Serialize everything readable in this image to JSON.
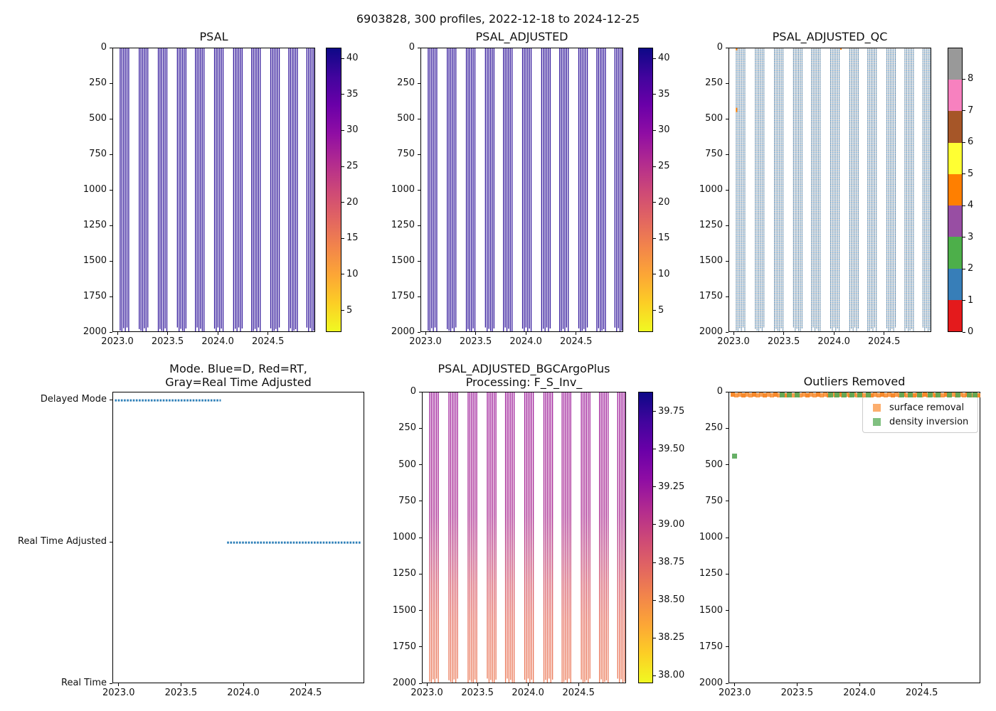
{
  "figure": {
    "title": "6903828, 300 profiles, 2022-12-18 to 2024-12-25",
    "background": "#ffffff"
  },
  "shared_axes": {
    "x": {
      "lim": [
        2022.95,
        2024.97
      ],
      "tick_values": [
        2023.0,
        2023.5,
        2024.0,
        2024.5
      ],
      "tick_labels": [
        "2023.0",
        "2023.5",
        "2024.0",
        "2024.5"
      ]
    },
    "depth": {
      "lim": [
        0,
        2000
      ],
      "tick_values": [
        0,
        250,
        500,
        750,
        1000,
        1250,
        1500,
        1750,
        2000
      ],
      "tick_labels": [
        "0",
        "250",
        "500",
        "750",
        "1000",
        "1250",
        "1500",
        "1750",
        "2000"
      ]
    },
    "profile_clusters": {
      "centers": [
        2023.07,
        2023.26,
        2023.45,
        2023.64,
        2023.82,
        2024.01,
        2024.2,
        2024.38,
        2024.57,
        2024.75,
        2024.93
      ],
      "lines_per_cluster": 6,
      "line_pitch_years": 0.017,
      "line_top_depth": 0,
      "line_bottom_depth_base": 1985,
      "line_bottom_depth_jitter": 22
    }
  },
  "chart_data": [
    {
      "id": "psal",
      "type": "profile-lines",
      "title": "PSAL",
      "line_color": "#32179b",
      "line_width": 1.3,
      "colorbar": {
        "cmap": "plasma_r",
        "colors_top_to_bottom": [
          "#0d0887",
          "#41049d",
          "#6a00a8",
          "#8f0da4",
          "#b12a90",
          "#cc4778",
          "#e16462",
          "#f2844b",
          "#fca636",
          "#fcce25",
          "#f0f921"
        ],
        "vmin": 2.0,
        "vmax": 41.5,
        "tick_values": [
          5,
          10,
          15,
          20,
          25,
          30,
          35,
          40
        ],
        "tick_labels": [
          "5",
          "10",
          "15",
          "20",
          "25",
          "30",
          "35",
          "40"
        ]
      }
    },
    {
      "id": "psal_adjusted",
      "type": "profile-lines",
      "title": "PSAL_ADJUSTED",
      "line_color": "#32179b",
      "line_width": 1.3,
      "colorbar": {
        "cmap": "plasma_r",
        "colors_top_to_bottom": [
          "#0d0887",
          "#41049d",
          "#6a00a8",
          "#8f0da4",
          "#b12a90",
          "#cc4778",
          "#e16462",
          "#f2844b",
          "#fca636",
          "#fcce25",
          "#f0f921"
        ],
        "vmin": 2.0,
        "vmax": 41.5,
        "tick_values": [
          5,
          10,
          15,
          20,
          25,
          30,
          35,
          40
        ],
        "tick_labels": [
          "5",
          "10",
          "15",
          "20",
          "25",
          "30",
          "35",
          "40"
        ]
      }
    },
    {
      "id": "psal_adjusted_qc",
      "type": "profile-lines-dashed",
      "title": "PSAL_ADJUSTED_QC",
      "line_dash_colors": [
        "#4d8cc0",
        "#9f9f9f"
      ],
      "line_width": 1.1,
      "orange_color": "#ff7f00",
      "orange_marks": [
        {
          "x": 2023.03,
          "depth_start": 418,
          "depth_end": 448
        },
        {
          "x": 2023.03,
          "depth_start": 0,
          "depth_end": 14
        },
        {
          "x": 2024.07,
          "depth_start": 0,
          "depth_end": 10
        }
      ],
      "colorbar": {
        "cmap": "Set1",
        "colors_low_to_high": [
          "#e41a1c",
          "#377eb8",
          "#4daf4a",
          "#984ea3",
          "#ff7f00",
          "#ffff33",
          "#a65628",
          "#f781bf",
          "#999999"
        ],
        "vmin": 0,
        "vmax": 9,
        "tick_values": [
          0,
          1,
          2,
          3,
          4,
          5,
          6,
          7,
          8
        ],
        "tick_labels": [
          "0",
          "1",
          "2",
          "3",
          "4",
          "5",
          "6",
          "7",
          "8"
        ]
      }
    },
    {
      "id": "mode",
      "type": "category-timeline",
      "title": "Mode. Blue=D, Red=RT,\nGray=Real Time Adjusted",
      "categories": [
        "Delayed Mode",
        "Real Time Adjusted",
        "Real Time"
      ],
      "segments": [
        {
          "category": "Delayed Mode",
          "x_start": 2022.97,
          "x_end": 2023.82
        },
        {
          "category": "Real Time Adjusted",
          "x_start": 2023.87,
          "x_end": 2024.94
        }
      ],
      "line_color": "#2d7fb8"
    },
    {
      "id": "bgc",
      "type": "profile-lines-gradient",
      "title": "PSAL_ADJUSTED_BGCArgoPlus\nProcessing: F_S_Inv_",
      "line_width": 1.3,
      "line_gradient": [
        {
          "depth_frac": 0.0,
          "color": "#9e1f9c"
        },
        {
          "depth_frac": 0.42,
          "color": "#a8258f"
        },
        {
          "depth_frac": 0.55,
          "color": "#c04481"
        },
        {
          "depth_frac": 0.66,
          "color": "#d75a6b"
        },
        {
          "depth_frac": 0.78,
          "color": "#e56b5c"
        },
        {
          "depth_frac": 1.0,
          "color": "#ec7a55"
        }
      ],
      "colorbar": {
        "cmap": "plasma_r",
        "colors_top_to_bottom": [
          "#0d0887",
          "#41049d",
          "#6a00a8",
          "#8f0da4",
          "#b12a90",
          "#cc4778",
          "#e16462",
          "#f2844b",
          "#fca636",
          "#fcce25",
          "#f0f921"
        ],
        "vmin": 37.95,
        "vmax": 39.88,
        "tick_values": [
          38.0,
          38.25,
          38.5,
          38.75,
          39.0,
          39.25,
          39.5,
          39.75
        ],
        "tick_labels": [
          "38.00",
          "38.25",
          "38.50",
          "38.75",
          "39.00",
          "39.25",
          "39.50",
          "39.75"
        ]
      }
    },
    {
      "id": "outliers",
      "type": "scatter",
      "title": "Outliers Removed",
      "legend": [
        {
          "label": "surface removal",
          "color": "#fcae6e"
        },
        {
          "label": "density inversion",
          "color": "#80c080"
        }
      ],
      "surface_band": {
        "x_start": 2022.96,
        "x_end": 2024.97,
        "depth": 20,
        "color": "#f78321",
        "square_size": 6
      },
      "density_inversion_color": "#57a757",
      "density_inversion_points": [
        {
          "x": 2023.38,
          "depth": 22
        },
        {
          "x": 2023.44,
          "depth": 22
        },
        {
          "x": 2023.5,
          "depth": 22
        },
        {
          "x": 2023.77,
          "depth": 22
        },
        {
          "x": 2023.82,
          "depth": 22
        },
        {
          "x": 2023.88,
          "depth": 22
        },
        {
          "x": 2023.94,
          "depth": 22
        },
        {
          "x": 2024.0,
          "depth": 22
        },
        {
          "x": 2024.07,
          "depth": 22
        },
        {
          "x": 2024.34,
          "depth": 22
        },
        {
          "x": 2024.41,
          "depth": 22
        },
        {
          "x": 2024.48,
          "depth": 22
        },
        {
          "x": 2024.57,
          "depth": 22
        },
        {
          "x": 2024.63,
          "depth": 22
        },
        {
          "x": 2024.72,
          "depth": 22
        },
        {
          "x": 2024.79,
          "depth": 22
        },
        {
          "x": 2024.88,
          "depth": 22
        },
        {
          "x": 2024.93,
          "depth": 22
        },
        {
          "x": 2023.0,
          "depth": 440
        }
      ]
    }
  ]
}
